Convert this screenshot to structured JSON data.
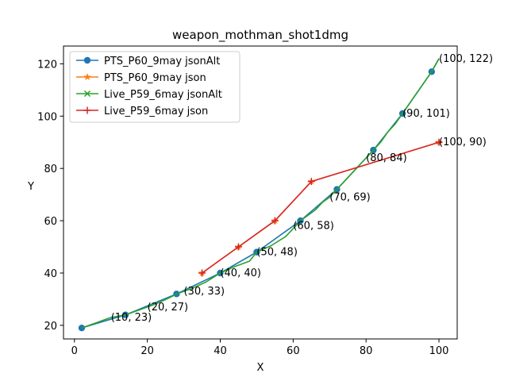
{
  "chart_data": {
    "type": "line",
    "title": "weapon_mothman_shot1dmg",
    "xlabel": "X",
    "ylabel": "Y",
    "xlim": [
      -3,
      105
    ],
    "ylim": [
      14.8,
      126.8
    ],
    "xticks": [
      0,
      20,
      40,
      60,
      80,
      100
    ],
    "yticks": [
      20,
      40,
      60,
      80,
      100,
      120
    ],
    "grid": false,
    "legend_position": "top-left",
    "series": [
      {
        "name": "PTS_P60_9may jsonAlt",
        "color": "#1f77b4",
        "marker": "circle",
        "points": [
          [
            2,
            19
          ],
          [
            14,
            24
          ],
          [
            28,
            32
          ],
          [
            40,
            40
          ],
          [
            50,
            48
          ],
          [
            62,
            60
          ],
          [
            72,
            72
          ],
          [
            82,
            87
          ],
          [
            90,
            101
          ],
          [
            98,
            117
          ],
          [
            100,
            122
          ]
        ],
        "marker_points": [
          [
            2,
            19
          ],
          [
            14,
            24
          ],
          [
            28,
            32
          ],
          [
            40,
            40
          ],
          [
            50,
            48
          ],
          [
            62,
            60
          ],
          [
            72,
            72
          ],
          [
            82,
            87
          ],
          [
            90,
            101
          ],
          [
            98,
            117
          ]
        ]
      },
      {
        "name": "PTS_P60_9may json",
        "color": "#ff7f0e",
        "marker": "star",
        "points": [
          [
            35,
            40
          ],
          [
            45,
            50
          ],
          [
            55,
            60
          ],
          [
            65,
            75
          ],
          [
            100,
            90
          ]
        ],
        "marker_points": [
          [
            35,
            40
          ],
          [
            45,
            50
          ],
          [
            55,
            60
          ],
          [
            65,
            75
          ],
          [
            100,
            90
          ]
        ]
      },
      {
        "name": "Live_P59_6may jsonAlt",
        "color": "#2ca02c",
        "marker": "x",
        "points": [
          [
            2,
            19
          ],
          [
            6,
            21
          ],
          [
            10,
            23
          ],
          [
            14,
            24
          ],
          [
            18,
            26
          ],
          [
            22,
            28
          ],
          [
            26,
            30.5
          ],
          [
            28,
            32
          ],
          [
            32,
            34
          ],
          [
            36,
            36.5
          ],
          [
            40,
            40
          ],
          [
            44,
            42.5
          ],
          [
            48,
            44.5
          ],
          [
            50,
            48
          ],
          [
            54,
            50.5
          ],
          [
            58,
            54
          ],
          [
            62,
            60
          ],
          [
            64,
            62
          ],
          [
            66,
            64
          ],
          [
            68,
            67
          ],
          [
            70,
            69
          ],
          [
            72,
            72
          ],
          [
            74,
            75
          ],
          [
            76,
            78
          ],
          [
            78,
            81
          ],
          [
            80,
            84
          ],
          [
            82,
            87
          ],
          [
            84,
            90
          ],
          [
            86,
            94
          ],
          [
            88,
            97
          ],
          [
            90,
            101
          ],
          [
            92,
            105
          ],
          [
            94,
            109
          ],
          [
            96,
            113
          ],
          [
            98,
            117
          ],
          [
            100,
            122
          ]
        ],
        "marker_points": []
      },
      {
        "name": "Live_P59_6may json",
        "color": "#d62728",
        "marker": "plus",
        "points": [
          [
            35,
            40
          ],
          [
            45,
            50
          ],
          [
            55,
            60
          ],
          [
            65,
            75
          ],
          [
            100,
            90
          ]
        ],
        "marker_points": [
          [
            35,
            40
          ],
          [
            45,
            50
          ],
          [
            55,
            60
          ],
          [
            65,
            75
          ],
          [
            100,
            90
          ]
        ]
      }
    ],
    "annotations": [
      {
        "text": "(10, 23)",
        "x": 10,
        "y": 23
      },
      {
        "text": "(20, 27)",
        "x": 20,
        "y": 27
      },
      {
        "text": "(30, 33)",
        "x": 30,
        "y": 33
      },
      {
        "text": "(40, 40)",
        "x": 40,
        "y": 40
      },
      {
        "text": "(50, 48)",
        "x": 50,
        "y": 48
      },
      {
        "text": "(60, 58)",
        "x": 60,
        "y": 58
      },
      {
        "text": "(70, 69)",
        "x": 70,
        "y": 69
      },
      {
        "text": "(80, 84)",
        "x": 80,
        "y": 84
      },
      {
        "text": "(90, 101)",
        "x": 90,
        "y": 101
      },
      {
        "text": "(100, 122)",
        "x": 100,
        "y": 122
      },
      {
        "text": "(100, 90)",
        "x": 100,
        "y": 90
      }
    ]
  }
}
